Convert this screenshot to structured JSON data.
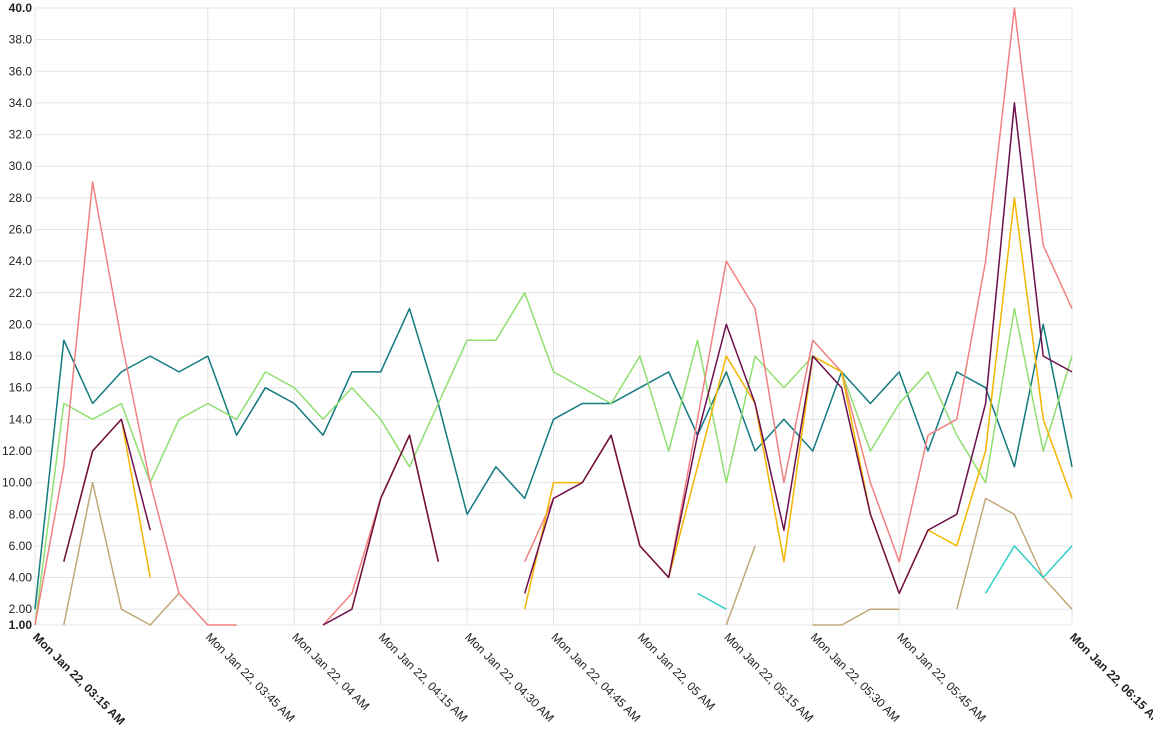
{
  "chart_data": {
    "type": "line",
    "categories": [
      "Mon Jan 22, 03:15 AM",
      null,
      null,
      null,
      null,
      null,
      "Mon Jan 22, 03:45 AM",
      null,
      null,
      "Mon Jan 22, 04 AM",
      null,
      null,
      "Mon Jan 22, 04:15 AM",
      null,
      null,
      "Mon Jan 22, 04:30 AM",
      null,
      null,
      "Mon Jan 22, 04:45 AM",
      null,
      null,
      "Mon Jan 22, 05 AM",
      null,
      null,
      "Mon Jan 22, 05:15 AM",
      null,
      null,
      "Mon Jan 22, 05:30 AM",
      null,
      null,
      "Mon Jan 22, 05:45 AM",
      null,
      null,
      null,
      null,
      null,
      "Mon Jan 22, 06:15 AM"
    ],
    "series": [
      {
        "color": "#137a7f",
        "values": [
          2,
          19,
          15,
          17,
          18,
          17,
          18,
          13,
          16,
          15,
          13,
          17,
          17,
          21,
          15,
          8,
          11,
          9,
          14,
          15,
          15,
          16,
          17,
          13,
          17,
          12,
          14,
          12,
          17,
          15,
          17,
          12,
          17,
          16,
          11,
          20,
          11
        ]
      },
      {
        "color": "#8fdf6f",
        "values": [
          1,
          15,
          14,
          15,
          10,
          14,
          15,
          14,
          17,
          16,
          14,
          16,
          14,
          11,
          15,
          19,
          19,
          22,
          17,
          16,
          15,
          18,
          12,
          19,
          10,
          18,
          16,
          18,
          17,
          12,
          15,
          17,
          13,
          10,
          21,
          12,
          18
        ]
      },
      {
        "color": "#f28080",
        "values": [
          1,
          11,
          29,
          19,
          10,
          3,
          1,
          1,
          null,
          null,
          1,
          3,
          9,
          13,
          5,
          null,
          null,
          5,
          9,
          10,
          13,
          6,
          4,
          14,
          24,
          21,
          10,
          19,
          17,
          10,
          5,
          13,
          14,
          24,
          40,
          25,
          21
        ]
      },
      {
        "color": "#f4b400",
        "values": [
          null,
          5,
          12,
          14,
          4,
          null,
          null,
          null,
          null,
          null,
          null,
          2,
          9,
          13,
          5,
          null,
          null,
          2,
          10,
          10,
          13,
          6,
          4,
          11,
          18,
          15,
          5,
          18,
          17,
          8,
          3,
          7,
          6,
          12,
          28,
          14,
          9
        ]
      },
      {
        "color": "#6d0f4e",
        "values": [
          null,
          5,
          12,
          14,
          7,
          null,
          null,
          null,
          null,
          null,
          1,
          2,
          9,
          13,
          5,
          null,
          null,
          3,
          9,
          10,
          13,
          6,
          4,
          13,
          20,
          15,
          7,
          18,
          16,
          8,
          3,
          7,
          8,
          15,
          34,
          18,
          17
        ]
      },
      {
        "color": "#c2a878",
        "values": [
          null,
          1,
          10,
          2,
          1,
          3,
          null,
          null,
          null,
          null,
          null,
          null,
          null,
          null,
          null,
          null,
          null,
          null,
          null,
          null,
          null,
          null,
          null,
          null,
          1,
          6,
          null,
          1,
          1,
          2,
          2,
          null,
          2,
          9,
          8,
          4,
          2
        ]
      },
      {
        "color": "#2fd0c8",
        "values": [
          null,
          null,
          null,
          null,
          null,
          null,
          null,
          null,
          null,
          null,
          null,
          null,
          null,
          null,
          null,
          null,
          null,
          null,
          null,
          null,
          null,
          null,
          null,
          3,
          2,
          null,
          null,
          null,
          null,
          null,
          null,
          null,
          null,
          3,
          6,
          4,
          6
        ]
      }
    ],
    "ylim": [
      1,
      40
    ],
    "yticks": [
      {
        "value": 1,
        "label": "1.00"
      },
      {
        "value": 2,
        "label": "2.00"
      },
      {
        "value": 4,
        "label": "4.00"
      },
      {
        "value": 6,
        "label": "6.00"
      },
      {
        "value": 8,
        "label": "8.00"
      },
      {
        "value": 10,
        "label": "10.00"
      },
      {
        "value": 12,
        "label": "12.00"
      },
      {
        "value": 14,
        "label": "14.0"
      },
      {
        "value": 16,
        "label": "16.0"
      },
      {
        "value": 18,
        "label": "18.0"
      },
      {
        "value": 20,
        "label": "20.0"
      },
      {
        "value": 22,
        "label": "22.0"
      },
      {
        "value": 24,
        "label": "24.0"
      },
      {
        "value": 26,
        "label": "26.0"
      },
      {
        "value": 28,
        "label": "28.0"
      },
      {
        "value": 30,
        "label": "30.0"
      },
      {
        "value": 32,
        "label": "32.0"
      },
      {
        "value": 34,
        "label": "34.0"
      },
      {
        "value": 36,
        "label": "36.0"
      },
      {
        "value": 38,
        "label": "38.0"
      },
      {
        "value": 40,
        "label": "40.0"
      }
    ],
    "grid": true
  }
}
